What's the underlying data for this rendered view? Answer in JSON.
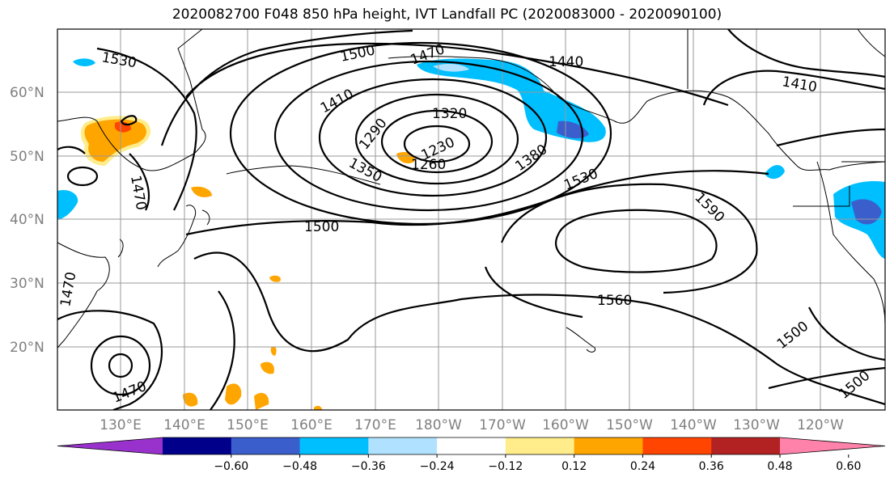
{
  "title": "2020082700 F048 850 hPa height, IVT Landfall PC (2020083000 - 2020090100)",
  "map": {
    "lat_ticks": [
      "60°N",
      "50°N",
      "40°N",
      "30°N",
      "20°N"
    ],
    "lon_ticks": [
      "130°E",
      "140°E",
      "150°E",
      "160°E",
      "170°E",
      "180°W",
      "170°W",
      "160°W",
      "150°W",
      "140°W",
      "130°W",
      "120°W"
    ],
    "contour_labels": [
      "1530",
      "1500",
      "1470",
      "1440",
      "1410",
      "1410",
      "1320",
      "1290",
      "1230",
      "1260",
      "1350",
      "1380",
      "1470",
      "1530",
      "1500",
      "1590",
      "1560",
      "1500",
      "1500",
      "1470",
      "1470"
    ]
  },
  "colorbar": {
    "ticks": [
      "−0.60",
      "−0.48",
      "−0.36",
      "−0.24",
      "−0.12",
      "0.12",
      "0.24",
      "0.36",
      "0.48",
      "0.60"
    ],
    "colors": [
      "#9932cc",
      "#00008b",
      "#3a5fcd",
      "#00bfff",
      "#b0e2ff",
      "#ffffff",
      "#ffec8b",
      "#ffa500",
      "#ff4500",
      "#b22222",
      "#ff82ab"
    ]
  }
}
